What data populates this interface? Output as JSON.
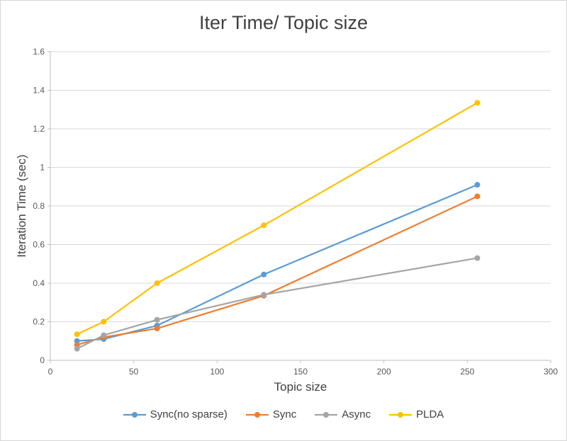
{
  "chart_data": {
    "type": "line",
    "title": "Iter Time/ Topic size",
    "xlabel": "Topic size",
    "ylabel": "Iteration Time (sec)",
    "x": [
      16,
      32,
      64,
      128,
      256
    ],
    "series": [
      {
        "name": "Sync(no sparse)",
        "color": "#5B9BD5",
        "values": [
          0.1,
          0.11,
          0.18,
          0.445,
          0.91
        ]
      },
      {
        "name": "Sync",
        "color": "#ED7D31",
        "values": [
          0.08,
          0.12,
          0.165,
          0.335,
          0.85
        ]
      },
      {
        "name": "Async",
        "color": "#A5A5A5",
        "values": [
          0.06,
          0.13,
          0.21,
          0.34,
          0.53
        ]
      },
      {
        "name": "PLDA",
        "color": "#FFC000",
        "values": [
          0.135,
          0.2,
          0.4,
          0.7,
          1.335
        ]
      }
    ],
    "xlim": [
      0,
      300
    ],
    "ylim": [
      0,
      1.6
    ],
    "x_ticks": [
      0,
      50,
      100,
      150,
      200,
      250,
      300
    ],
    "y_ticks": [
      0,
      0.2,
      0.4,
      0.6,
      0.8,
      1,
      1.2,
      1.4,
      1.6
    ],
    "grid": "horizontal",
    "legend_position": "bottom",
    "colors": {
      "gridline": "#D9D9D9",
      "axis": "#BFBFBF",
      "tick_label": "#595959",
      "text": "#404040"
    }
  }
}
